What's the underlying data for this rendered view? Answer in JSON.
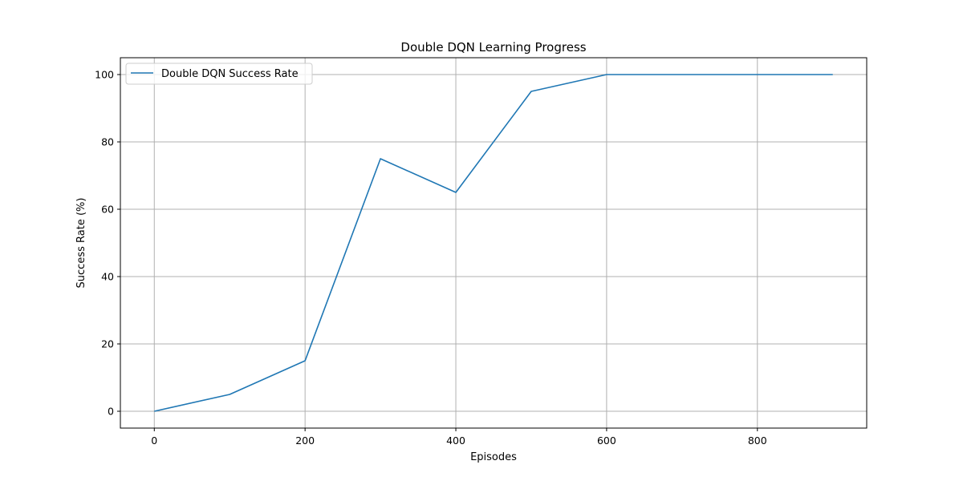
{
  "chart_data": {
    "type": "line",
    "title": "Double DQN Learning Progress",
    "xlabel": "Episodes",
    "ylabel": "Success Rate (%)",
    "xlim": [
      -45,
      945
    ],
    "ylim": [
      -5,
      105
    ],
    "xticks": [
      0,
      200,
      400,
      600,
      800
    ],
    "yticks": [
      0,
      20,
      40,
      60,
      80,
      100
    ],
    "grid": true,
    "legend_position": "top-left",
    "series": [
      {
        "name": "Double DQN Success Rate",
        "color": "#1f77b4",
        "x": [
          0,
          100,
          200,
          300,
          400,
          500,
          600,
          700,
          800,
          900
        ],
        "y": [
          0,
          5,
          15,
          75,
          65,
          95,
          100,
          100,
          100,
          100
        ]
      }
    ]
  }
}
